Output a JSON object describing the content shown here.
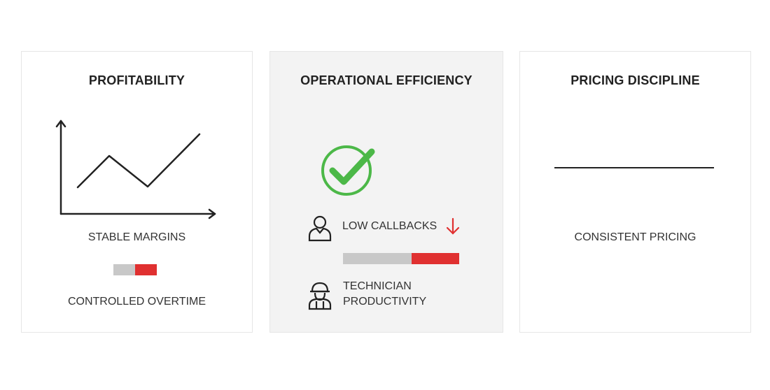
{
  "panels": [
    {
      "title": "PROFITABILITY",
      "labels": [
        "STABLE MARGINS",
        "CONTROLLED OVERTIME"
      ],
      "bar_split": 0.5
    },
    {
      "title": "OPERATIONAL EFFICIENCY",
      "labels": [
        "LOW CALLBACKS",
        "TECHNICIAN",
        "PRODUCTIVITY"
      ],
      "bar_split": 0.59,
      "icons": [
        "check-circle-icon",
        "person-icon",
        "arrow-down-icon",
        "technician-icon"
      ]
    },
    {
      "title": "PRICING DISCIPLINE",
      "labels": [
        "CONSISTENT PRICING"
      ]
    }
  ],
  "colors": {
    "green": "#4cb848",
    "red": "#e03030",
    "gray": "#c8c8c8",
    "ink": "#222222"
  }
}
